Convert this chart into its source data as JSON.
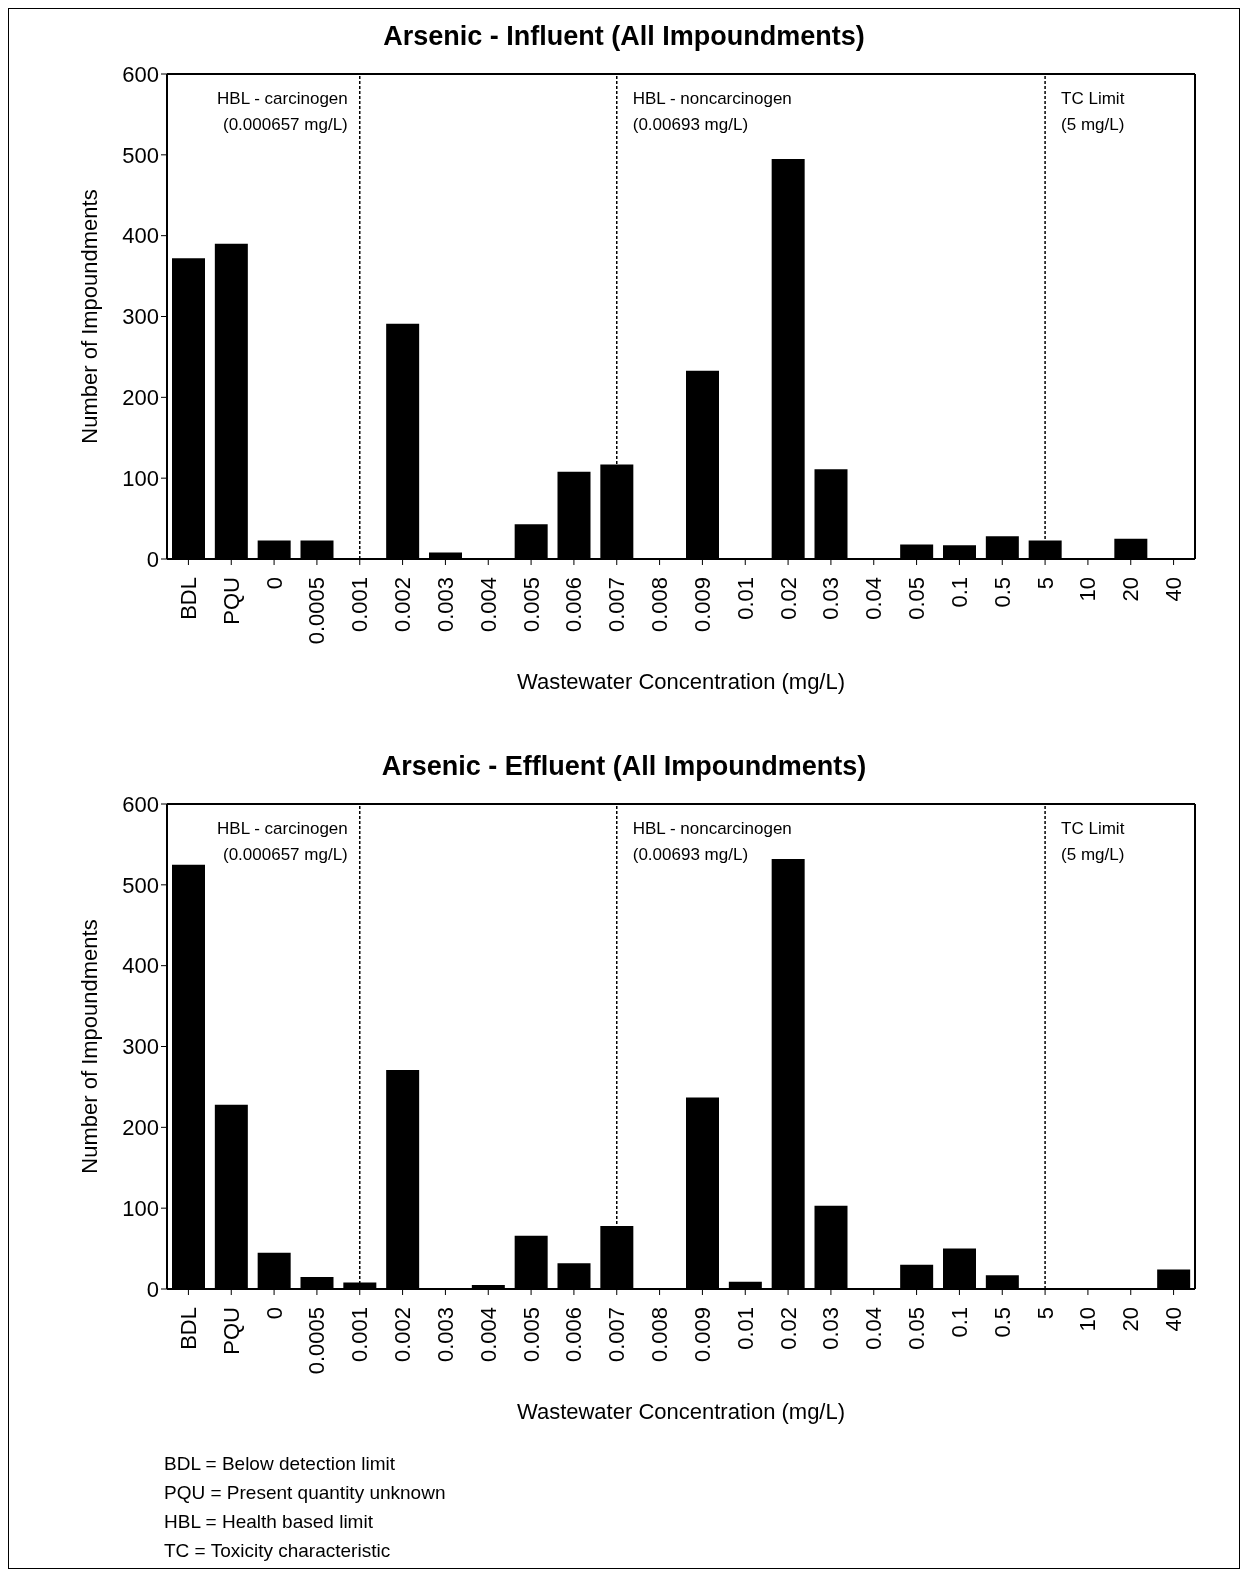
{
  "chart_data": [
    {
      "type": "bar",
      "title": "Arsenic - Influent (All Impoundments)",
      "xlabel": "Wastewater Concentration (mg/L)",
      "ylabel": "Number of Impoundments",
      "categories": [
        "BDL",
        "PQU",
        "0",
        "0.0005",
        "0.001",
        "0.002",
        "0.003",
        "0.004",
        "0.005",
        "0.006",
        "0.007",
        "0.008",
        "0.009",
        "0.01",
        "0.02",
        "0.03",
        "0.04",
        "0.05",
        "0.1",
        "0.5",
        "5",
        "10",
        "20",
        "40"
      ],
      "values": [
        372,
        390,
        23,
        23,
        0,
        291,
        8,
        0,
        43,
        108,
        117,
        0,
        233,
        0,
        495,
        111,
        0,
        18,
        17,
        28,
        23,
        0,
        25,
        0
      ],
      "color": "#000000",
      "ylim": [
        0,
        600
      ],
      "yticks": [
        0,
        100,
        200,
        300,
        400,
        500,
        600
      ],
      "ref_lines": [
        {
          "axis": "x",
          "value": "0.001",
          "label": "HBL - carcinogen\n(0.000657 mg/L)",
          "line_style": "dotted",
          "color": "#000000"
        },
        {
          "axis": "x",
          "value": "0.007",
          "label": "HBL - noncarcinogen\n(0.00693 mg/L)",
          "line_style": "dotted",
          "color": "#000000"
        },
        {
          "axis": "x",
          "value": "5",
          "label": "TC Limit\n(5 mg/L)",
          "line_style": "dotted",
          "color": "#000000"
        }
      ]
    },
    {
      "type": "bar",
      "title": "Arsenic - Effluent (All Impoundments)",
      "xlabel": "Wastewater Concentration (mg/L)",
      "ylabel": "Number of Impoundments",
      "categories": [
        "BDL",
        "PQU",
        "0",
        "0.0005",
        "0.001",
        "0.002",
        "0.003",
        "0.004",
        "0.005",
        "0.006",
        "0.007",
        "0.008",
        "0.009",
        "0.01",
        "0.02",
        "0.03",
        "0.04",
        "0.05",
        "0.1",
        "0.5",
        "5",
        "10",
        "20",
        "40"
      ],
      "values": [
        525,
        228,
        45,
        15,
        8,
        271,
        0,
        5,
        66,
        32,
        78,
        0,
        237,
        9,
        532,
        103,
        0,
        30,
        50,
        17,
        0,
        0,
        0,
        24
      ],
      "color": "#000000",
      "ylim": [
        0,
        600
      ],
      "yticks": [
        0,
        100,
        200,
        300,
        400,
        500,
        600
      ],
      "ref_lines": [
        {
          "axis": "x",
          "value": "0.001",
          "label": "HBL - carcinogen\n(0.000657 mg/L)",
          "line_style": "dotted",
          "color": "#000000"
        },
        {
          "axis": "x",
          "value": "0.007",
          "label": "HBL - noncarcinogen\n(0.00693 mg/L)",
          "line_style": "dotted",
          "color": "#000000"
        },
        {
          "axis": "x",
          "value": "5",
          "label": "TC Limit\n(5 mg/L)",
          "line_style": "dotted",
          "color": "#000000"
        }
      ],
      "annotations": [
        "BDL = Below detection limit",
        "PQU = Present quantity unknown",
        "HBL = Health based limit",
        "TC = Toxicity characteristic"
      ]
    }
  ]
}
